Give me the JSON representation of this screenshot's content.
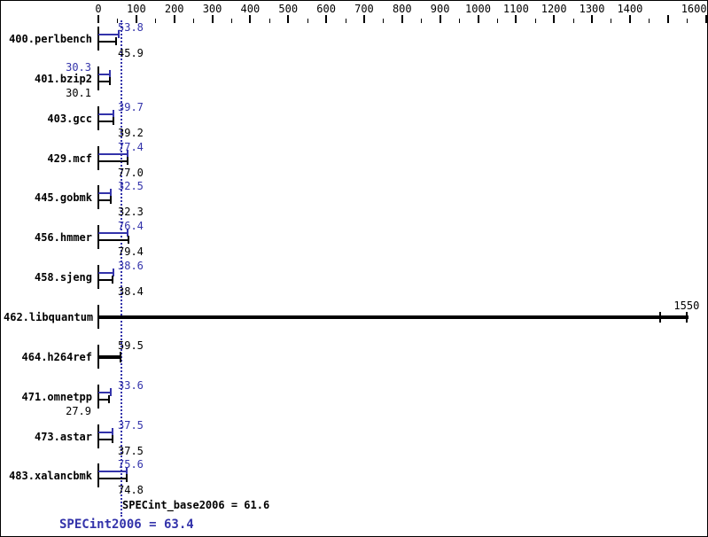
{
  "colors": {
    "peak_series": "#3333AA",
    "base_series": "#000000",
    "reference_line": "#3333AA",
    "background": "#FFFFFF"
  },
  "chart_data": {
    "type": "bar",
    "orientation": "horizontal",
    "axis": {
      "position": "top",
      "min": 0,
      "max": 1600,
      "major_step": 100,
      "minor_step": 50,
      "tick_labels": [
        "0",
        "100",
        "200",
        "300",
        "400",
        "500",
        "600",
        "700",
        "800",
        "900",
        "1000",
        "1100",
        "1200",
        "1300",
        "1400",
        "1600"
      ]
    },
    "series_legend": [
      {
        "name": "peak",
        "color": "#3333AA"
      },
      {
        "name": "base",
        "color": "#000000"
      }
    ],
    "benchmarks": [
      {
        "name": "400.perlbench",
        "peak": 53.8,
        "base": 45.9,
        "peak_label": "53.8",
        "base_label": "45.9",
        "peak_side": "right",
        "base_side": "right"
      },
      {
        "name": "401.bzip2",
        "peak": 30.3,
        "base": 30.1,
        "peak_label": "30.3",
        "base_label": "30.1",
        "peak_side": "left",
        "base_side": "left"
      },
      {
        "name": "403.gcc",
        "peak": 39.7,
        "base": 39.2,
        "peak_label": "39.7",
        "base_label": "39.2",
        "peak_side": "right",
        "base_side": "right"
      },
      {
        "name": "429.mcf",
        "peak": 77.4,
        "base": 77.0,
        "peak_label": "77.4",
        "base_label": "77.0",
        "peak_side": "right",
        "base_side": "right"
      },
      {
        "name": "445.gobmk",
        "peak": 32.5,
        "base": 32.3,
        "peak_label": "32.5",
        "base_label": "32.3",
        "peak_side": "right",
        "base_side": "right"
      },
      {
        "name": "456.hmmer",
        "peak": 76.4,
        "base": 79.4,
        "peak_label": "76.4",
        "base_label": "79.4",
        "peak_side": "right",
        "base_side": "right"
      },
      {
        "name": "458.sjeng",
        "peak": 38.6,
        "base": 38.4,
        "peak_label": "38.6",
        "base_label": "38.4",
        "peak_side": "right",
        "base_side": "right"
      },
      {
        "name": "462.libquantum",
        "merged": true,
        "value": 1550,
        "label": "1550",
        "bar_to": 1555,
        "caps": [
          1480,
          1550
        ],
        "label_align": "end"
      },
      {
        "name": "464.h264ref",
        "merged": true,
        "value": 59.5,
        "label": "59.5",
        "bar_to": 59.5,
        "caps": [
          59.5
        ],
        "label_align": "right"
      },
      {
        "name": "471.omnetpp",
        "peak": 33.6,
        "base": 27.9,
        "peak_label": "33.6",
        "base_label": "27.9",
        "peak_side": "right",
        "base_side": "left"
      },
      {
        "name": "473.astar",
        "peak": 37.5,
        "base": 37.5,
        "peak_label": "37.5",
        "base_label": "37.5",
        "peak_side": "right",
        "base_side": "right"
      },
      {
        "name": "483.xalancbmk",
        "peak": 75.6,
        "base": 74.8,
        "peak_label": "75.6",
        "base_label": "74.8",
        "peak_side": "right",
        "base_side": "right"
      }
    ],
    "reference_line_value": 61.6,
    "footer": {
      "base_metric": "SPECint_base2006 = 61.6",
      "peak_metric": "SPECint2006 = 63.4",
      "base_value": 61.6,
      "peak_value": 63.4
    }
  }
}
